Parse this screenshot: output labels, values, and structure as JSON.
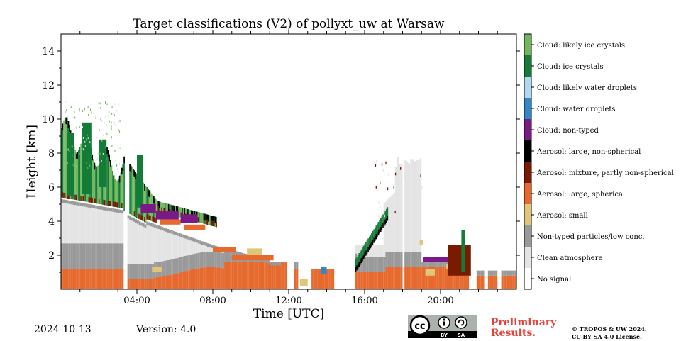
{
  "chart_data": {
    "type": "heatmap",
    "title": "Target classifications (V2) of pollyxt_uw at Warsaw",
    "xlabel": "Time [UTC]",
    "ylabel": "Height [km]",
    "xlim_hours": [
      0,
      24
    ],
    "ylim_km": [
      0,
      15
    ],
    "x_ticks": [
      "04:00",
      "08:00",
      "12:00",
      "16:00",
      "20:00"
    ],
    "y_ticks": [
      2,
      4,
      6,
      8,
      10,
      12,
      14
    ],
    "legend": [
      {
        "label": "Cloud: likely ice crystals",
        "color": "#72b75e"
      },
      {
        "label": "Cloud: ice crystals",
        "color": "#137d38"
      },
      {
        "label": "Cloud: likely water droplets",
        "color": "#b4d8f1"
      },
      {
        "label": "Cloud: water droplets",
        "color": "#3287c6"
      },
      {
        "label": "Cloud: non-typed",
        "color": "#7a1a87"
      },
      {
        "label": "Aerosol: large, non-spherical",
        "color": "#000000"
      },
      {
        "label": "Aerosol: mixture, partly non-spherical",
        "color": "#7a1a00"
      },
      {
        "label": "Aerosol: large, spherical",
        "color": "#e6692e"
      },
      {
        "label": "Aerosol: small",
        "color": "#dfc67a"
      },
      {
        "label": "Non-typed particles/low conc.",
        "color": "#999999"
      },
      {
        "label": "Clean atmosphere",
        "color": "#e4e4e4"
      },
      {
        "label": "No signal",
        "color": "#ffffff"
      }
    ]
  },
  "footer": {
    "date": "2024-10-13",
    "version": "Version: 4.0",
    "preliminary_line1": "Preliminary",
    "preliminary_line2": "Results.",
    "copyright_line1": "© TROPOS & UW 2024.",
    "copyright_line2": "CC BY SA 4.0 License.",
    "cc_label": "cc",
    "by_label": "BY",
    "sa_label": "SA"
  }
}
